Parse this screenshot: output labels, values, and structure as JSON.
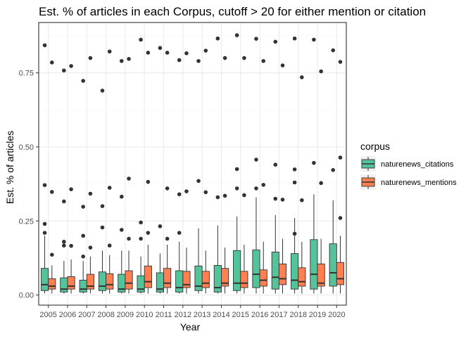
{
  "chart_data": {
    "type": "boxplot",
    "title": "Est. % of articles in each Corpus, cutoff > 20 for either mention or citation",
    "xlabel": "Year",
    "ylabel": "Est. % of articles",
    "categories": [
      "2005",
      "2006",
      "2007",
      "2008",
      "2009",
      "2010",
      "2011",
      "2012",
      "2013",
      "2014",
      "2015",
      "2016",
      "2017",
      "2018",
      "2019",
      "2020"
    ],
    "ylim": [
      -0.02,
      0.9
    ],
    "yticks": [
      0.0,
      0.25,
      0.5,
      0.75
    ],
    "ytick_labels": [
      "0.00",
      "0.25",
      "0.50",
      "0.75"
    ],
    "grid": true,
    "legend_title": "corpus",
    "legend_position": "right",
    "colors": {
      "panel_border": "#333333",
      "grid_major": "#ebebeb",
      "grid_minor": "#f5f5f5",
      "outlier": "#333333"
    },
    "series": [
      {
        "name": "naturenews_citations",
        "color": "#54c39a",
        "boxes": [
          {
            "min": 0.005,
            "q1": 0.015,
            "median": 0.035,
            "q3": 0.09,
            "max": 0.2,
            "outliers": [
              0.843,
              0.371,
              0.24,
              0.21
            ]
          },
          {
            "min": 0.005,
            "q1": 0.01,
            "median": 0.02,
            "q3": 0.058,
            "max": 0.115,
            "outliers": [
              0.758,
              0.316,
              0.18,
              0.167
            ]
          },
          {
            "min": 0.005,
            "q1": 0.01,
            "median": 0.02,
            "q3": 0.05,
            "max": 0.115,
            "outliers": [
              0.723,
              0.298,
              0.2,
              0.13
            ]
          },
          {
            "min": 0.005,
            "q1": 0.015,
            "median": 0.03,
            "q3": 0.078,
            "max": 0.15,
            "outliers": [
              0.69,
              0.3,
              0.228
            ]
          },
          {
            "min": 0.005,
            "q1": 0.01,
            "median": 0.02,
            "q3": 0.07,
            "max": 0.15,
            "outliers": [
              0.79,
              0.332,
              0.22
            ]
          },
          {
            "min": 0.005,
            "q1": 0.01,
            "median": 0.02,
            "q3": 0.065,
            "max": 0.13,
            "outliers": [
              0.862,
              0.245,
              0.19
            ]
          },
          {
            "min": 0.005,
            "q1": 0.01,
            "median": 0.02,
            "q3": 0.075,
            "max": 0.14,
            "outliers": [
              0.834,
              0.232
            ]
          },
          {
            "min": 0.005,
            "q1": 0.01,
            "median": 0.025,
            "q3": 0.082,
            "max": 0.18,
            "outliers": [
              0.793,
              0.34,
              0.21
            ]
          },
          {
            "min": 0.005,
            "q1": 0.015,
            "median": 0.03,
            "q3": 0.098,
            "max": 0.225,
            "outliers": [
              0.79,
              0.385
            ]
          },
          {
            "min": 0.005,
            "q1": 0.01,
            "median": 0.025,
            "q3": 0.1,
            "max": 0.235,
            "outliers": [
              0.866,
              0.33
            ]
          },
          {
            "min": 0.005,
            "q1": 0.015,
            "median": 0.04,
            "q3": 0.15,
            "max": 0.265,
            "outliers": [
              0.877,
              0.425,
              0.36
            ]
          },
          {
            "min": 0.005,
            "q1": 0.025,
            "median": 0.07,
            "q3": 0.152,
            "max": 0.33,
            "outliers": [
              0.865,
              0.457,
              0.36
            ]
          },
          {
            "min": 0.005,
            "q1": 0.02,
            "median": 0.06,
            "q3": 0.145,
            "max": 0.27,
            "outliers": [
              0.855,
              0.44,
              0.325
            ]
          },
          {
            "min": 0.005,
            "q1": 0.02,
            "median": 0.05,
            "q3": 0.14,
            "max": 0.26,
            "outliers": [
              0.866,
              0.424,
              0.38,
              0.207
            ]
          },
          {
            "min": 0.005,
            "q1": 0.02,
            "median": 0.07,
            "q3": 0.187,
            "max": 0.34,
            "outliers": [
              0.862,
              0.446
            ]
          },
          {
            "min": 0.005,
            "q1": 0.03,
            "median": 0.075,
            "q3": 0.173,
            "max": 0.32,
            "outliers": [
              0.826,
              0.422
            ]
          }
        ]
      },
      {
        "name": "naturenews_mentions",
        "color": "#ff7f50",
        "boxes": [
          {
            "min": 0.005,
            "q1": 0.02,
            "median": 0.03,
            "q3": 0.055,
            "max": 0.1,
            "outliers": [
              0.785,
              0.348,
              0.136
            ]
          },
          {
            "min": 0.005,
            "q1": 0.02,
            "median": 0.03,
            "q3": 0.062,
            "max": 0.12,
            "outliers": [
              0.773,
              0.357,
              0.166
            ]
          },
          {
            "min": 0.005,
            "q1": 0.02,
            "median": 0.03,
            "q3": 0.07,
            "max": 0.13,
            "outliers": [
              0.8,
              0.342,
              0.16
            ]
          },
          {
            "min": 0.005,
            "q1": 0.02,
            "median": 0.035,
            "q3": 0.072,
            "max": 0.135,
            "outliers": [
              0.822,
              0.362,
              0.167
            ]
          },
          {
            "min": 0.005,
            "q1": 0.02,
            "median": 0.04,
            "q3": 0.082,
            "max": 0.15,
            "outliers": [
              0.797,
              0.393,
              0.19
            ]
          },
          {
            "min": 0.005,
            "q1": 0.025,
            "median": 0.045,
            "q3": 0.098,
            "max": 0.17,
            "outliers": [
              0.818,
              0.382,
              0.21
            ]
          },
          {
            "min": 0.005,
            "q1": 0.025,
            "median": 0.04,
            "q3": 0.09,
            "max": 0.17,
            "outliers": [
              0.818,
              0.36,
              0.19
            ]
          },
          {
            "min": 0.005,
            "q1": 0.025,
            "median": 0.035,
            "q3": 0.08,
            "max": 0.16,
            "outliers": [
              0.816,
              0.35
            ]
          },
          {
            "min": 0.005,
            "q1": 0.025,
            "median": 0.04,
            "q3": 0.08,
            "max": 0.15,
            "outliers": [
              0.825,
              0.347
            ]
          },
          {
            "min": 0.005,
            "q1": 0.03,
            "median": 0.04,
            "q3": 0.09,
            "max": 0.16,
            "outliers": [
              0.8,
              0.335
            ]
          },
          {
            "min": 0.005,
            "q1": 0.025,
            "median": 0.04,
            "q3": 0.08,
            "max": 0.17,
            "outliers": [
              0.8,
              0.337
            ]
          },
          {
            "min": 0.005,
            "q1": 0.03,
            "median": 0.05,
            "q3": 0.085,
            "max": 0.18,
            "outliers": [
              0.79,
              0.372
            ]
          },
          {
            "min": 0.005,
            "q1": 0.035,
            "median": 0.055,
            "q3": 0.105,
            "max": 0.19,
            "outliers": [
              0.775,
              0.322
            ]
          },
          {
            "min": 0.005,
            "q1": 0.03,
            "median": 0.045,
            "q3": 0.092,
            "max": 0.18,
            "outliers": [
              0.735,
              0.32
            ]
          },
          {
            "min": 0.005,
            "q1": 0.03,
            "median": 0.04,
            "q3": 0.105,
            "max": 0.19,
            "outliers": [
              0.755,
              0.378
            ]
          },
          {
            "min": 0.005,
            "q1": 0.035,
            "median": 0.055,
            "q3": 0.11,
            "max": 0.2,
            "outliers": [
              0.787,
              0.464,
              0.26
            ]
          }
        ]
      }
    ]
  }
}
